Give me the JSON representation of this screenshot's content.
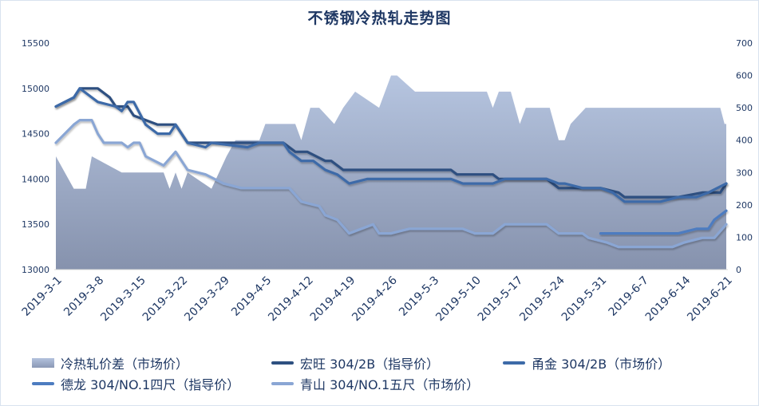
{
  "title": "不锈钢冷热轧走势图",
  "chart_data": {
    "type": "line+area",
    "title": "不锈钢冷热轧走势图",
    "xlabel": "",
    "ylabel_left": "",
    "ylabel_right": "",
    "x_tick_labels": [
      "2019-3-1",
      "2019-3-8",
      "2019-3-15",
      "2019-3-22",
      "2019-3-29",
      "2019-4-5",
      "2019-4-12",
      "2019-4-19",
      "2019-4-26",
      "2019-5-3",
      "2019-5-10",
      "2019-5-17",
      "2019-5-24",
      "2019-5-31",
      "2019-6-7",
      "2019-6-14",
      "2019-6-21"
    ],
    "y_left_ticks": [
      13000,
      13500,
      14000,
      14500,
      15000,
      15500
    ],
    "y_left_range": [
      13000,
      15500
    ],
    "y_right_ticks": [
      0,
      100,
      200,
      300,
      400,
      500,
      600,
      700
    ],
    "y_right_range": [
      0,
      700
    ],
    "x_unit": "days since 2019-3-1",
    "x_range": [
      0,
      112
    ],
    "grid": false,
    "legend_position": "bottom",
    "series": [
      {
        "name": "冷热轧价差（市场价）",
        "kind": "area",
        "axis": "right",
        "color_top": "#b3c2dd",
        "color_bottom": "#8a98b5",
        "points": [
          [
            0,
            350
          ],
          [
            3,
            250
          ],
          [
            5,
            250
          ],
          [
            6,
            350
          ],
          [
            11,
            300
          ],
          [
            18,
            300
          ],
          [
            19,
            250
          ],
          [
            20,
            300
          ],
          [
            21,
            250
          ],
          [
            22,
            300
          ],
          [
            26,
            250
          ],
          [
            28.5,
            350
          ],
          [
            30,
            400
          ],
          [
            34,
            400
          ],
          [
            35,
            450
          ],
          [
            40,
            450
          ],
          [
            41,
            400
          ],
          [
            42.5,
            500
          ],
          [
            44,
            500
          ],
          [
            46.5,
            450
          ],
          [
            48,
            500
          ],
          [
            50,
            550
          ],
          [
            54,
            500
          ],
          [
            56,
            600
          ],
          [
            57,
            600
          ],
          [
            60,
            550
          ],
          [
            72,
            550
          ],
          [
            73,
            500
          ],
          [
            74,
            550
          ],
          [
            76,
            550
          ],
          [
            77.5,
            450
          ],
          [
            78.5,
            500
          ],
          [
            82.5,
            500
          ],
          [
            84,
            400
          ],
          [
            85,
            400
          ],
          [
            86,
            450
          ],
          [
            88.5,
            500
          ],
          [
            111,
            500
          ],
          [
            111.7,
            450
          ],
          [
            112,
            450
          ]
        ]
      },
      {
        "name": "宏旺 304/2B（指导价）",
        "kind": "line",
        "axis": "left",
        "color": "#2e5080",
        "points": [
          [
            0,
            14800
          ],
          [
            3,
            14900
          ],
          [
            4,
            15000
          ],
          [
            7,
            15000
          ],
          [
            9,
            14900
          ],
          [
            10,
            14800
          ],
          [
            12,
            14800
          ],
          [
            13,
            14700
          ],
          [
            17,
            14600
          ],
          [
            20,
            14600
          ],
          [
            22,
            14400
          ],
          [
            26,
            14400
          ],
          [
            38,
            14400
          ],
          [
            40,
            14300
          ],
          [
            42,
            14300
          ],
          [
            45,
            14200
          ],
          [
            46,
            14200
          ],
          [
            48,
            14100
          ],
          [
            66,
            14100
          ],
          [
            67,
            14050
          ],
          [
            73,
            14050
          ],
          [
            74,
            14000
          ],
          [
            82,
            14000
          ],
          [
            84,
            13900
          ],
          [
            91,
            13900
          ],
          [
            94,
            13850
          ],
          [
            95,
            13800
          ],
          [
            104,
            13800
          ],
          [
            108,
            13850
          ],
          [
            111,
            13850
          ],
          [
            112,
            13950
          ]
        ]
      },
      {
        "name": "甬金 304/2B（市场价）",
        "kind": "line",
        "axis": "left",
        "color": "#3d6aa8",
        "points": [
          [
            0,
            14800
          ],
          [
            3,
            14900
          ],
          [
            4,
            15000
          ],
          [
            5,
            14950
          ],
          [
            7,
            14850
          ],
          [
            10,
            14800
          ],
          [
            11,
            14750
          ],
          [
            12,
            14850
          ],
          [
            13,
            14850
          ],
          [
            15,
            14600
          ],
          [
            17,
            14500
          ],
          [
            19,
            14500
          ],
          [
            20,
            14600
          ],
          [
            22,
            14400
          ],
          [
            25,
            14350
          ],
          [
            26,
            14400
          ],
          [
            32,
            14350
          ],
          [
            34,
            14400
          ],
          [
            38,
            14400
          ],
          [
            39,
            14300
          ],
          [
            41,
            14200
          ],
          [
            43,
            14200
          ],
          [
            45,
            14100
          ],
          [
            47,
            14050
          ],
          [
            49,
            13950
          ],
          [
            52,
            14000
          ],
          [
            66,
            14000
          ],
          [
            68,
            13950
          ],
          [
            73,
            13950
          ],
          [
            75,
            14000
          ],
          [
            82,
            14000
          ],
          [
            84,
            13950
          ],
          [
            85,
            13950
          ],
          [
            88,
            13900
          ],
          [
            91,
            13900
          ],
          [
            93,
            13850
          ],
          [
            95,
            13750
          ],
          [
            101,
            13750
          ],
          [
            104,
            13800
          ],
          [
            107,
            13800
          ],
          [
            109,
            13850
          ],
          [
            112,
            13950
          ]
        ]
      },
      {
        "name": "德龙 304/NO.1四尺（指导价）",
        "kind": "line",
        "axis": "left",
        "color": "#4d7cc0",
        "points": [
          [
            91,
            13400
          ],
          [
            104,
            13400
          ],
          [
            107,
            13450
          ],
          [
            109,
            13450
          ],
          [
            110,
            13550
          ],
          [
            112,
            13650
          ]
        ]
      },
      {
        "name": "青山 304/NO.1五尺（市场价）",
        "kind": "line",
        "axis": "left",
        "color": "#8aa6d4",
        "points": [
          [
            0,
            14400
          ],
          [
            3,
            14600
          ],
          [
            4,
            14650
          ],
          [
            6,
            14650
          ],
          [
            7,
            14500
          ],
          [
            8,
            14400
          ],
          [
            11,
            14400
          ],
          [
            12,
            14350
          ],
          [
            13,
            14400
          ],
          [
            14,
            14400
          ],
          [
            15,
            14250
          ],
          [
            18,
            14150
          ],
          [
            20,
            14300
          ],
          [
            22,
            14100
          ],
          [
            25,
            14050
          ],
          [
            28,
            13950
          ],
          [
            31,
            13900
          ],
          [
            39,
            13900
          ],
          [
            41,
            13750
          ],
          [
            44,
            13700
          ],
          [
            45,
            13600
          ],
          [
            47,
            13550
          ],
          [
            49,
            13400
          ],
          [
            53,
            13500
          ],
          [
            54,
            13400
          ],
          [
            56,
            13400
          ],
          [
            59,
            13450
          ],
          [
            68,
            13450
          ],
          [
            70,
            13400
          ],
          [
            73,
            13400
          ],
          [
            75,
            13500
          ],
          [
            82,
            13500
          ],
          [
            84,
            13400
          ],
          [
            88,
            13400
          ],
          [
            89,
            13350
          ],
          [
            92,
            13300
          ],
          [
            94,
            13250
          ],
          [
            103,
            13250
          ],
          [
            105,
            13300
          ],
          [
            108,
            13350
          ],
          [
            110,
            13350
          ],
          [
            112,
            13500
          ]
        ]
      }
    ]
  },
  "legend": {
    "rows": [
      [
        {
          "label": "冷热轧价差（市场价）",
          "type": "area"
        },
        {
          "label": "宏旺 304/2B（指导价）",
          "type": "line",
          "color": "#2e5080"
        },
        {
          "label": "甬金 304/2B（市场价）",
          "type": "line",
          "color": "#3d6aa8"
        }
      ],
      [
        {
          "label": "德龙 304/NO.1四尺（指导价）",
          "type": "line",
          "color": "#4d7cc0"
        },
        {
          "label": "青山 304/NO.1五尺（市场价）",
          "type": "line",
          "color": "#8aa6d4"
        }
      ]
    ]
  }
}
